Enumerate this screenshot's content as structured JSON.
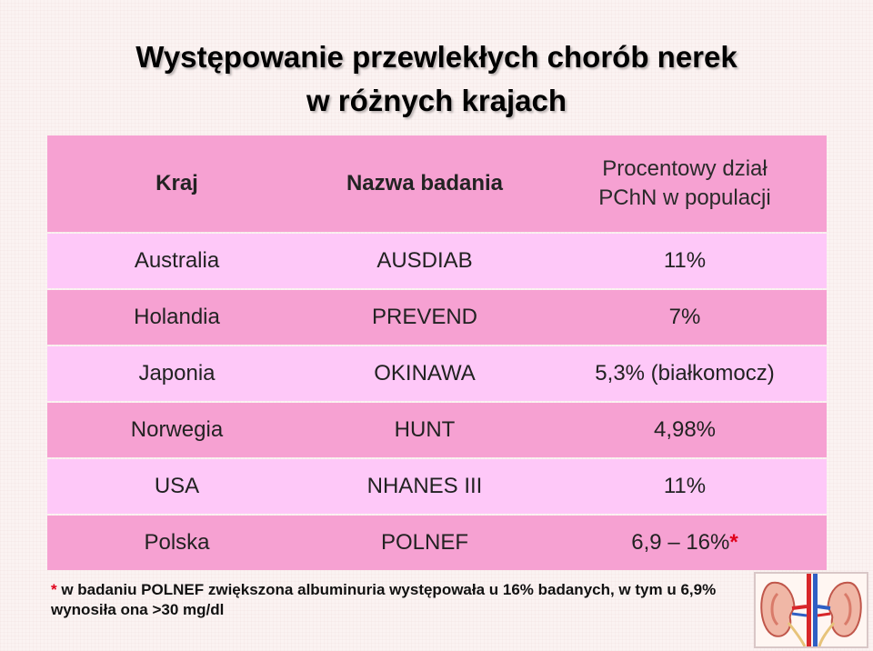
{
  "title": {
    "line1": "Występowanie przewlekłych chorób nerek",
    "line2": "w różnych krajach"
  },
  "table": {
    "headers": {
      "country": "Kraj",
      "study": "Nazwa badania",
      "percent_line1": "Procentowy dział",
      "percent_line2": "PChN w populacji"
    },
    "rows": [
      {
        "country": "Australia",
        "study": "AUSDIAB",
        "percent": "11%"
      },
      {
        "country": "Holandia",
        "study": "PREVEND",
        "percent": "7%"
      },
      {
        "country": "Japonia",
        "study": "OKINAWA",
        "percent": "5,3% (białkomocz)"
      },
      {
        "country": "Norwegia",
        "study": "HUNT",
        "percent": "4,98%"
      },
      {
        "country": "USA",
        "study": "NHANES III",
        "percent": "11%"
      },
      {
        "country": "Polska",
        "study": "POLNEF",
        "percent": "6,9 – 16%",
        "marker": "*"
      }
    ]
  },
  "footnote": {
    "marker": "*",
    "text": " w badaniu POLNEF zwiększona albuminuria występowała u 16% badanych, w tym u 6,9% wynosiła ona >30 mg/dl"
  },
  "colors": {
    "header_bg": "#f6a1d2",
    "row_light": "#fec8f8",
    "row_dark": "#f6a1d2",
    "accent_red": "#e0001b"
  },
  "icons": [
    "kidney-illustration"
  ]
}
